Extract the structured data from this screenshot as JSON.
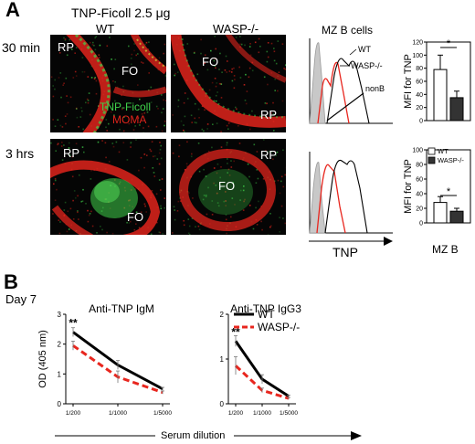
{
  "figure": {
    "panel_a": {
      "letter": "A",
      "title": "TNP-Ficoll   2.5  μg",
      "col_wt": "WT",
      "col_wasp": "WASP-/-",
      "row_30": "30 min",
      "row_3h": "3 hrs",
      "micro_labels": {
        "rp": "RP",
        "fo": "FO",
        "stain_green": "TNP-Ficoll",
        "stain_red": "MOMA"
      },
      "hist_title": "MZ B cells",
      "hist_labels": {
        "wt": "WT",
        "wasp": "WASP-/-",
        "nonb": "nonB"
      },
      "hist_xlabel": "TNP",
      "bar_ylabel": "MFI for TNP",
      "bar_xlabel": "MZ B",
      "colors": {
        "green": "#3fd14a",
        "red": "#e0241c",
        "wt": "#000000",
        "wasp": "#e8261e",
        "nonb": "#bdbdbd"
      }
    },
    "panel_b": {
      "letter": "B",
      "day": "Day 7",
      "xlabel": "Serum dilution",
      "ylabel": "OD (405 nm)"
    }
  },
  "chart_data": [
    {
      "type": "bar",
      "id": "mfi-30min",
      "categories": [
        "WT",
        "WASP-/-"
      ],
      "values": [
        78,
        35
      ],
      "errors": [
        22,
        10
      ],
      "ylim": [
        0,
        120
      ],
      "yticks": [
        "0",
        "20",
        "40",
        "60",
        "80",
        "100",
        "120"
      ],
      "ylabel": "MFI for TNP",
      "significance": "*"
    },
    {
      "type": "bar",
      "id": "mfi-3hrs",
      "categories": [
        "WT",
        "WASP-/-"
      ],
      "values": [
        28,
        16
      ],
      "errors": [
        8,
        4
      ],
      "ylim": [
        0,
        100
      ],
      "yticks": [
        "0",
        "20",
        "40",
        "60",
        "80",
        "100"
      ],
      "ylabel": "MFI for TNP",
      "xlabel": "MZ B",
      "legend": [
        "WT",
        "WASP-/-"
      ],
      "significance": "*"
    },
    {
      "type": "line",
      "id": "anti-tnp-igm",
      "title": "Anti-TNP   IgM",
      "categories": [
        "1/200",
        "1/1000",
        "1/5000"
      ],
      "ylim": [
        0,
        3
      ],
      "yticks": [
        "0",
        "1",
        "2",
        "3"
      ],
      "series": [
        {
          "name": "WT",
          "values": [
            2.4,
            1.3,
            0.5
          ],
          "errors": [
            0.15,
            0.15,
            0.05
          ]
        },
        {
          "name": "WASP-/-",
          "values": [
            1.95,
            0.9,
            0.38
          ],
          "errors": [
            0.15,
            0.2,
            0.05
          ]
        }
      ],
      "significance": "**"
    },
    {
      "type": "line",
      "id": "anti-tnp-igg3",
      "title": "Anti-TNP IgG3",
      "categories": [
        "1/200",
        "1/1000",
        "1/5000"
      ],
      "ylim": [
        0,
        2
      ],
      "yticks": [
        "0",
        "1",
        "2"
      ],
      "series": [
        {
          "name": "WT",
          "values": [
            1.4,
            0.55,
            0.17
          ],
          "errors": [
            0.12,
            0.1,
            0.02
          ]
        },
        {
          "name": "WASP-/-",
          "values": [
            0.85,
            0.3,
            0.12
          ],
          "errors": [
            0.2,
            0.05,
            0.02
          ]
        }
      ],
      "legend": [
        "WT",
        "WASP-/-"
      ],
      "significance": "**"
    }
  ]
}
